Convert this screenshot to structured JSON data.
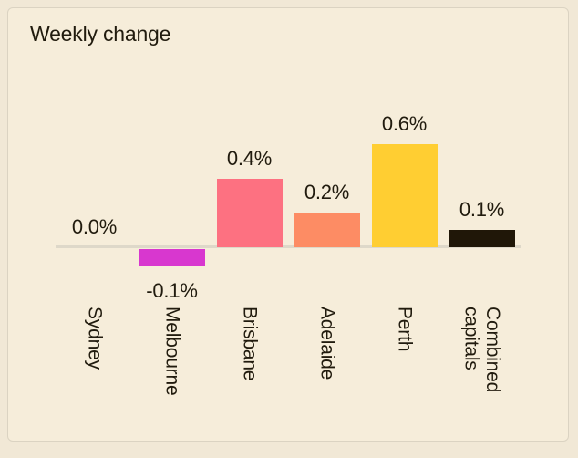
{
  "card": {
    "title": "Weekly change"
  },
  "chart_data": {
    "type": "bar",
    "title": "Weekly change",
    "categories": [
      "Sydney",
      "Melbourne",
      "Brisbane",
      "Adelaide",
      "Perth",
      "Combined capitals"
    ],
    "values": [
      0.0,
      -0.1,
      0.4,
      0.2,
      0.6,
      0.1
    ],
    "value_labels": [
      "0.0%",
      "-0.1%",
      "0.4%",
      "0.2%",
      "0.6%",
      "0.1%"
    ],
    "bar_colors": [
      null,
      "#d837cf",
      "#fd7181",
      "#fd8c64",
      "#ffce32",
      "#201708"
    ],
    "unit": "%",
    "xlabel": "",
    "ylabel": "",
    "ylim": [
      -0.2,
      0.8
    ],
    "baseline": 0,
    "grid": false,
    "legend": "none",
    "colors": {
      "page_background": "#f1e8d6",
      "card_background": "#f6edda",
      "card_border": "#dbd3c2",
      "axis_line": "#ded8c9",
      "text": "#211b0e"
    }
  }
}
